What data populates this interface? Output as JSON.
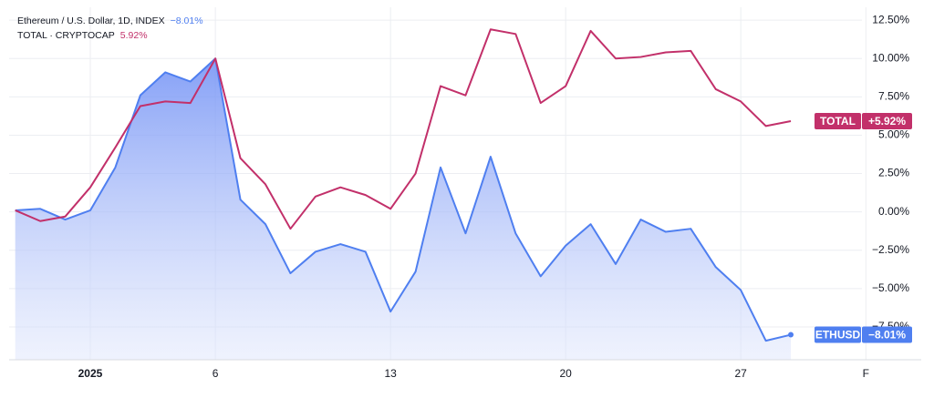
{
  "chart_data": {
    "type": "line",
    "categories": [
      null,
      null,
      null,
      "2025",
      null,
      null,
      null,
      null,
      "6",
      null,
      null,
      null,
      null,
      null,
      null,
      "13",
      null,
      null,
      null,
      null,
      null,
      null,
      "20",
      null,
      null,
      null,
      null,
      null,
      null,
      "27",
      null,
      null,
      null,
      null,
      "F"
    ],
    "series": [
      {
        "name": "Ethereum / U.S. Dollar, 1D, INDEX",
        "symbol": "ETHUSD",
        "color": "#4f7ff0",
        "area": true,
        "legend_value_label": "−8.01%",
        "last_value_label": "−8.01%",
        "values": [
          0.1,
          0.2,
          -0.5,
          0.1,
          2.9,
          7.6,
          9.1,
          8.5,
          10.0,
          0.8,
          -0.8,
          -4.0,
          -2.6,
          -2.1,
          -2.6,
          -6.5,
          -3.9,
          2.9,
          -1.4,
          3.6,
          -1.4,
          -4.2,
          -2.2,
          -0.8,
          -3.4,
          -0.5,
          -1.3,
          -1.1,
          -3.6,
          -5.1,
          -8.4,
          -8.01,
          null,
          null,
          null
        ]
      },
      {
        "name": "TOTAL · CRYPTOCAP",
        "symbol": "TOTAL",
        "color": "#c2306a",
        "area": false,
        "legend_value_label": "5.92%",
        "last_value_label": "+5.92%",
        "values": [
          0.1,
          -0.6,
          -0.3,
          1.6,
          4.2,
          6.9,
          7.2,
          7.1,
          10.0,
          3.5,
          1.8,
          -1.1,
          1.0,
          1.6,
          1.1,
          0.2,
          2.5,
          8.2,
          7.6,
          11.9,
          11.6,
          7.1,
          8.2,
          11.8,
          10.0,
          10.1,
          10.4,
          10.5,
          8.0,
          7.2,
          5.6,
          5.92,
          null,
          null,
          null
        ]
      }
    ],
    "ylim": [
      -9.64,
      13.34
    ],
    "yticks": [
      {
        "value": -7.5,
        "label": "−7.50%"
      },
      {
        "value": -5,
        "label": "−5.00%"
      },
      {
        "value": -2.5,
        "label": "−2.50%"
      },
      {
        "value": 0,
        "label": "0.00%"
      },
      {
        "value": 2.5,
        "label": "2.50%"
      },
      {
        "value": 5,
        "label": "5.00%"
      },
      {
        "value": 7.5,
        "label": "7.50%"
      },
      {
        "value": 10,
        "label": "10.00%"
      },
      {
        "value": 12.5,
        "label": "12.50%"
      }
    ],
    "grid": true
  }
}
